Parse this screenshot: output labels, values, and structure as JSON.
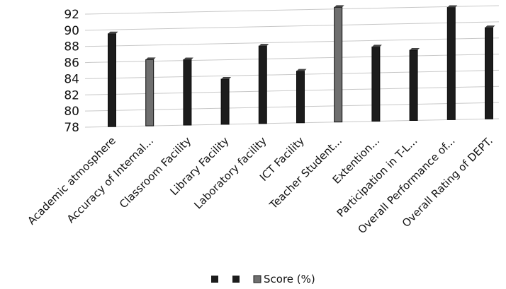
{
  "chart_data": {
    "type": "bar",
    "categories": [
      "Academic atmosphere",
      "Accuracy of Internal...",
      "Classroom Facility",
      "Library Facility",
      "Laboratory facility",
      "ICT Facility",
      "Teacher Student...",
      "Extention...",
      "Participation in T-L...",
      "Overall Performance of...",
      "Overall Rating of DEPT."
    ],
    "series": [
      {
        "name": "Score (%)",
        "values": [
          89.5,
          86.2,
          86.1,
          83.6,
          87.6,
          84.4,
          92.2,
          87.2,
          86.7,
          91.9,
          89.3
        ]
      }
    ],
    "ylim": [
      78,
      92
    ],
    "yticks": [
      78,
      80,
      82,
      84,
      86,
      88,
      90,
      92
    ],
    "grid": true,
    "legend_position": "bottom",
    "colors": {
      "bar_dark": "#1c1c1c",
      "bar_gray": "#6f6f6f",
      "grid": "#c8c8c8",
      "text": "#111111"
    },
    "highlight_categories": [
      1,
      6
    ]
  }
}
